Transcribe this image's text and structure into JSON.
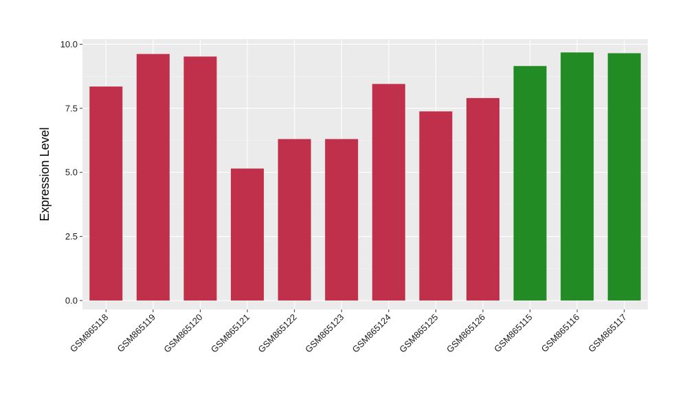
{
  "chart_data": {
    "type": "bar",
    "title": "",
    "xlabel": "",
    "ylabel": "Expression Level",
    "ylim": [
      -0.35,
      10.2
    ],
    "yticks": [
      0.0,
      2.5,
      5.0,
      7.5,
      10.0
    ],
    "ytick_labels": [
      "0.0",
      "2.5",
      "5.0",
      "7.5",
      "10.0"
    ],
    "grid": true,
    "legend": "none",
    "categories": [
      "GSM865118",
      "GSM865119",
      "GSM865120",
      "GSM865121",
      "GSM865122",
      "GSM865123",
      "GSM865124",
      "GSM865125",
      "GSM865126",
      "GSM865115",
      "GSM865116",
      "GSM865117"
    ],
    "values": [
      8.35,
      9.62,
      9.52,
      5.15,
      6.3,
      6.3,
      8.45,
      7.38,
      7.9,
      9.15,
      9.68,
      9.65
    ],
    "bar_colors": [
      "#c1304a",
      "#c1304a",
      "#c1304a",
      "#c1304a",
      "#c1304a",
      "#c1304a",
      "#c1304a",
      "#c1304a",
      "#c1304a",
      "#238b23",
      "#238b23",
      "#238b23"
    ],
    "colors": {
      "panel_background": "#ebebeb",
      "grid": "#ffffff"
    }
  }
}
